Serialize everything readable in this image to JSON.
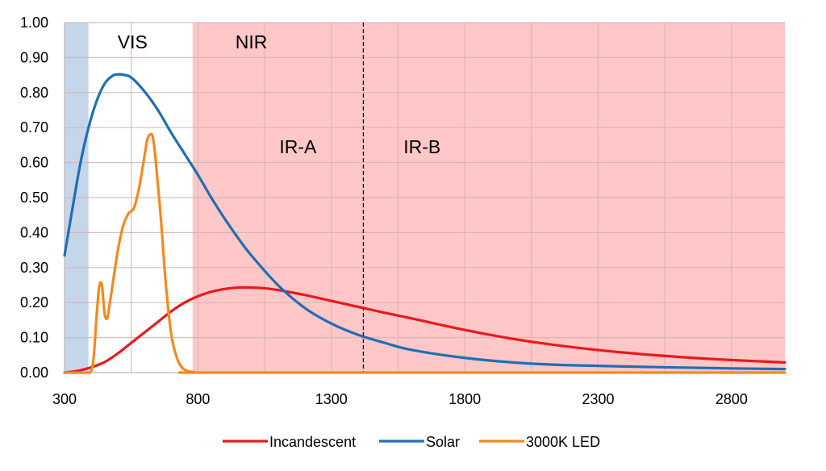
{
  "chart_data": {
    "type": "line",
    "title": "",
    "xlabel": "",
    "ylabel": "",
    "xlim": [
      300,
      3000
    ],
    "ylim": [
      0,
      1.0
    ],
    "xticks": [
      "300",
      "800",
      "1300",
      "1800",
      "2300",
      "2800"
    ],
    "yticks": [
      "0.00",
      "0.10",
      "0.20",
      "0.30",
      "0.40",
      "0.50",
      "0.60",
      "0.70",
      "0.80",
      "0.90",
      "1.00"
    ],
    "grid": true,
    "legend_position": "bottom",
    "regions": [
      {
        "label": "",
        "x_range": [
          300,
          390
        ],
        "color": "#c5d5ea"
      },
      {
        "label": "VIS",
        "x_range": [
          390,
          780
        ],
        "color": "#ffffff"
      },
      {
        "label": "NIR",
        "x_range": [
          780,
          3000
        ],
        "color": "#ffc7c7"
      }
    ],
    "region_labels": [
      {
        "text": "VIS",
        "x": 555,
        "y": 0.945
      },
      {
        "text": "NIR",
        "x": 1000,
        "y": 0.945
      },
      {
        "text": "IR-A",
        "x": 1175,
        "y": 0.645
      },
      {
        "text": "IR-B",
        "x": 1640,
        "y": 0.645
      }
    ],
    "divider": {
      "x": 1420,
      "style": "dashed",
      "color": "#000000"
    },
    "series": [
      {
        "name": "Incandescent",
        "color": "#e8191c",
        "x": [
          300,
          350,
          400,
          450,
          500,
          550,
          600,
          650,
          700,
          750,
          800,
          850,
          900,
          950,
          1000,
          1050,
          1100,
          1150,
          1200,
          1300,
          1400,
          1500,
          1600,
          1800,
          2000,
          2200,
          2400,
          2600,
          2800,
          3000
        ],
        "y": [
          0.0,
          0.005,
          0.015,
          0.03,
          0.055,
          0.085,
          0.115,
          0.145,
          0.175,
          0.2,
          0.218,
          0.231,
          0.239,
          0.243,
          0.243,
          0.241,
          0.236,
          0.229,
          0.222,
          0.205,
          0.188,
          0.171,
          0.155,
          0.122,
          0.094,
          0.073,
          0.057,
          0.045,
          0.036,
          0.029
        ]
      },
      {
        "name": "Solar",
        "color": "#1f6fb2",
        "x": [
          300,
          330,
          360,
          390,
          420,
          450,
          480,
          500,
          520,
          550,
          600,
          650,
          700,
          750,
          800,
          850,
          900,
          950,
          1000,
          1100,
          1200,
          1300,
          1400,
          1500,
          1600,
          1800,
          2000,
          2200,
          2500,
          2800,
          3000
        ],
        "y": [
          0.335,
          0.47,
          0.6,
          0.7,
          0.775,
          0.825,
          0.848,
          0.852,
          0.851,
          0.843,
          0.803,
          0.75,
          0.685,
          0.625,
          0.565,
          0.5,
          0.44,
          0.385,
          0.335,
          0.25,
          0.185,
          0.14,
          0.108,
          0.085,
          0.065,
          0.042,
          0.028,
          0.021,
          0.016,
          0.012,
          0.01
        ]
      },
      {
        "name": "3000K LED",
        "color": "#f28a1e",
        "x": [
          300,
          380,
          400,
          410,
          420,
          430,
          440,
          450,
          460,
          470,
          480,
          500,
          520,
          540,
          560,
          580,
          600,
          610,
          620,
          630,
          640,
          660,
          680,
          700,
          720,
          740,
          760,
          780,
          800,
          850,
          900,
          3000
        ],
        "y": [
          0.0,
          0.0,
          0.005,
          0.05,
          0.16,
          0.245,
          0.25,
          0.17,
          0.155,
          0.2,
          0.25,
          0.35,
          0.42,
          0.455,
          0.47,
          0.53,
          0.62,
          0.665,
          0.68,
          0.675,
          0.62,
          0.45,
          0.25,
          0.11,
          0.045,
          0.015,
          0.005,
          0.002,
          0.0,
          0.0,
          0.0,
          0.0
        ]
      }
    ]
  }
}
